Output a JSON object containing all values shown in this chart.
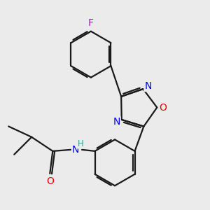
{
  "bg_color": "#ebebeb",
  "bond_color": "#1a1a1a",
  "bond_width": 1.6,
  "dbo": 0.055,
  "atom_colors": {
    "F": "#cc00cc",
    "N": "#0000ee",
    "O": "#ee0000",
    "H": "#3a9a9a",
    "C": "#1a1a1a"
  },
  "font_size": 10
}
